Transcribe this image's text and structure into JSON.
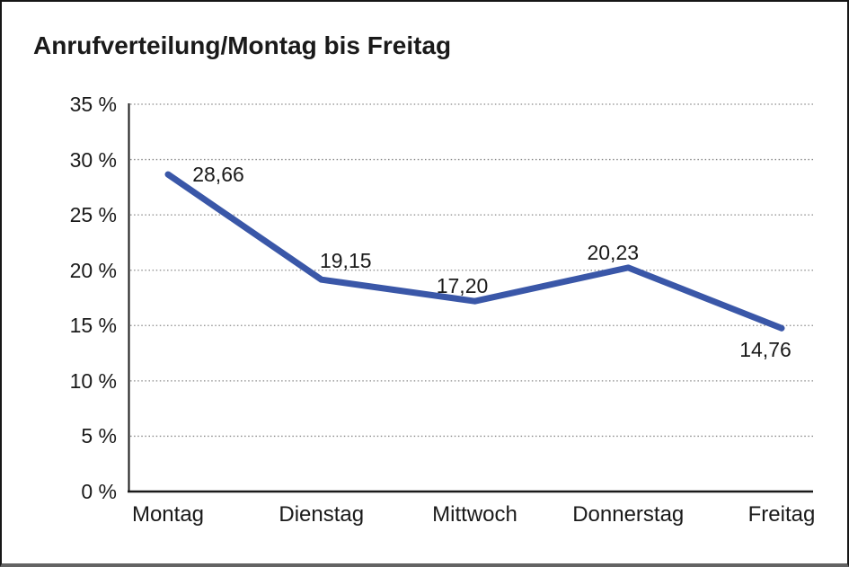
{
  "title": "Anrufverteilung/Montag bis Freitag",
  "chart_data": {
    "type": "line",
    "title": "Anrufverteilung/Montag bis Freitag",
    "categories": [
      "Montag",
      "Dienstag",
      "Mittwoch",
      "Donnerstag",
      "Freitag"
    ],
    "series": [
      {
        "name": "Anrufverteilung",
        "values": [
          28.66,
          19.15,
          17.2,
          20.23,
          14.76
        ],
        "value_labels": [
          "28,66",
          "19,15",
          "17,20",
          "20,23",
          "14,76"
        ]
      }
    ],
    "xlabel": "",
    "ylabel": "",
    "ylim": [
      0,
      35
    ],
    "ytick_step": 5,
    "ytick_labels": [
      "0 %",
      "5 %",
      "10 %",
      "15 %",
      "20 %",
      "25 %",
      "30 %",
      "35 %"
    ],
    "grid": "horizontal-dotted",
    "legend_position": "none",
    "colors": {
      "line": "#3A57A8",
      "grid": "#8a8a8a",
      "axis": "#1a1a1a",
      "text": "#1a1a1a",
      "background": "#ffffff",
      "frame_border": "#161616",
      "frame_border_bottom": "#636363"
    }
  }
}
